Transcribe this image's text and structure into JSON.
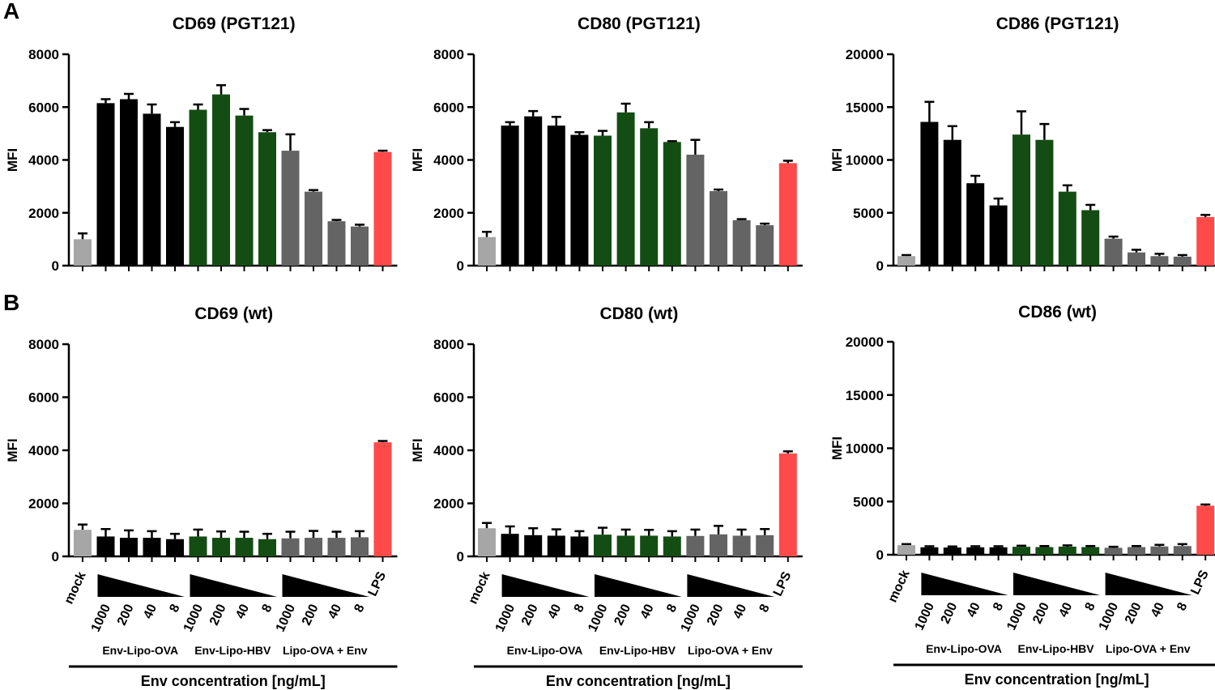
{
  "panel_labels": {
    "a": "A",
    "b": "B"
  },
  "x_axis": {
    "mock_label": "mock",
    "lps_label": "LPS",
    "concentrations": [
      "1000",
      "200",
      "40",
      "8"
    ],
    "groups": [
      "Env-Lipo-OVA",
      "Env-Lipo-HBV",
      "Lipo-OVA + Env"
    ],
    "title": "Env concentration [ng/mL]"
  },
  "colors": {
    "mock": "#a6a6a6",
    "Env-Lipo-OVA": "#000000",
    "Env-Lipo-HBV": "#144d14",
    "Lipo-OVA + Env": "#646464",
    "LPS": "#ff4a4a"
  },
  "chart_data": [
    {
      "type": "bar",
      "id": "cd69-pgt121",
      "row": "A",
      "title": "CD69 (PGT121)",
      "ylabel": "MFI",
      "ylim": [
        0,
        8000
      ],
      "yticks": [
        "0",
        "2000",
        "4000",
        "6000",
        "8000"
      ],
      "categories": [
        "mock",
        "Env-Lipo-OVA 1000",
        "Env-Lipo-OVA 200",
        "Env-Lipo-OVA 40",
        "Env-Lipo-OVA 8",
        "Env-Lipo-HBV 1000",
        "Env-Lipo-HBV 200",
        "Env-Lipo-HBV 40",
        "Env-Lipo-HBV 8",
        "Lipo-OVA + Env 1000",
        "Lipo-OVA + Env 200",
        "Lipo-OVA + Env 40",
        "Lipo-OVA + Env 8",
        "LPS"
      ],
      "values": [
        1000,
        6150,
        6300,
        5750,
        5250,
        5900,
        6480,
        5680,
        5050,
        4350,
        2800,
        1680,
        1480,
        4300
      ],
      "errors": [
        220,
        150,
        200,
        350,
        180,
        200,
        350,
        250,
        80,
        620,
        60,
        50,
        70,
        50
      ]
    },
    {
      "type": "bar",
      "id": "cd80-pgt121",
      "row": "A",
      "title": "CD80 (PGT121)",
      "ylabel": "MFI",
      "ylim": [
        0,
        8000
      ],
      "yticks": [
        "0",
        "2000",
        "4000",
        "6000",
        "8000"
      ],
      "categories": [
        "mock",
        "Env-Lipo-OVA 1000",
        "Env-Lipo-OVA 200",
        "Env-Lipo-OVA 40",
        "Env-Lipo-OVA 8",
        "Env-Lipo-HBV 1000",
        "Env-Lipo-HBV 200",
        "Env-Lipo-HBV 40",
        "Env-Lipo-HBV 8",
        "Lipo-OVA + Env 1000",
        "Lipo-OVA + Env 200",
        "Lipo-OVA + Env 40",
        "Lipo-OVA + Env 8",
        "LPS"
      ],
      "values": [
        1080,
        5300,
        5650,
        5300,
        4950,
        4920,
        5800,
        5200,
        4680,
        4200,
        2820,
        1720,
        1530,
        3880
      ],
      "errors": [
        200,
        130,
        200,
        330,
        100,
        180,
        330,
        230,
        30,
        560,
        60,
        40,
        60,
        90
      ]
    },
    {
      "type": "bar",
      "id": "cd86-pgt121",
      "row": "A",
      "title": "CD86 (PGT121)",
      "ylabel": "MFI",
      "ylim": [
        0,
        20000
      ],
      "yticks": [
        "0",
        "5000",
        "10000",
        "15000",
        "20000"
      ],
      "categories": [
        "mock",
        "Env-Lipo-OVA 1000",
        "Env-Lipo-OVA 200",
        "Env-Lipo-OVA 40",
        "Env-Lipo-OVA 8",
        "Env-Lipo-HBV 1000",
        "Env-Lipo-HBV 200",
        "Env-Lipo-HBV 40",
        "Env-Lipo-HBV 8",
        "Lipo-OVA + Env 1000",
        "Lipo-OVA + Env 200",
        "Lipo-OVA + Env 40",
        "Lipo-OVA + Env 8",
        "LPS"
      ],
      "values": [
        900,
        13600,
        11900,
        7800,
        5700,
        12400,
        11900,
        7000,
        5250,
        2550,
        1250,
        900,
        850,
        4600
      ],
      "errors": [
        100,
        1900,
        1300,
        700,
        650,
        2200,
        1500,
        600,
        500,
        200,
        250,
        220,
        150,
        200
      ]
    },
    {
      "type": "bar",
      "id": "cd69-wt",
      "row": "B",
      "title": "CD69 (wt)",
      "ylabel": "MFI",
      "ylim": [
        0,
        8000
      ],
      "yticks": [
        "0",
        "2000",
        "4000",
        "6000",
        "8000"
      ],
      "categories": [
        "mock",
        "Env-Lipo-OVA 1000",
        "Env-Lipo-OVA 200",
        "Env-Lipo-OVA 40",
        "Env-Lipo-OVA 8",
        "Env-Lipo-HBV 1000",
        "Env-Lipo-HBV 200",
        "Env-Lipo-HBV 40",
        "Env-Lipo-HBV 8",
        "Lipo-OVA + Env 1000",
        "Lipo-OVA + Env 200",
        "Lipo-OVA + Env 40",
        "Lipo-OVA + Env 8",
        "LPS"
      ],
      "values": [
        1000,
        750,
        700,
        700,
        650,
        750,
        700,
        700,
        650,
        680,
        700,
        700,
        720,
        4300
      ],
      "errors": [
        200,
        280,
        280,
        250,
        200,
        260,
        240,
        230,
        200,
        250,
        260,
        230,
        230,
        50
      ]
    },
    {
      "type": "bar",
      "id": "cd80-wt",
      "row": "B",
      "title": "CD80 (wt)",
      "ylabel": "MFI",
      "ylim": [
        0,
        8000
      ],
      "yticks": [
        "0",
        "2000",
        "4000",
        "6000",
        "8000"
      ],
      "categories": [
        "mock",
        "Env-Lipo-OVA 1000",
        "Env-Lipo-OVA 200",
        "Env-Lipo-OVA 40",
        "Env-Lipo-OVA 8",
        "Env-Lipo-HBV 1000",
        "Env-Lipo-HBV 200",
        "Env-Lipo-HBV 40",
        "Env-Lipo-HBV 8",
        "Lipo-OVA + Env 1000",
        "Lipo-OVA + Env 200",
        "Lipo-OVA + Env 40",
        "Lipo-OVA + Env 8",
        "LPS"
      ],
      "values": [
        1060,
        850,
        800,
        780,
        750,
        820,
        780,
        780,
        750,
        770,
        830,
        780,
        800,
        3880
      ],
      "errors": [
        200,
        280,
        260,
        240,
        200,
        260,
        230,
        220,
        200,
        240,
        320,
        230,
        230,
        80
      ]
    },
    {
      "type": "bar",
      "id": "cd86-wt",
      "row": "B",
      "title": "CD86 (wt)",
      "ylabel": "MFI",
      "ylim": [
        0,
        20000
      ],
      "yticks": [
        "0",
        "5000",
        "10000",
        "15000",
        "20000"
      ],
      "categories": [
        "mock",
        "Env-Lipo-OVA 1000",
        "Env-Lipo-OVA 200",
        "Env-Lipo-OVA 40",
        "Env-Lipo-OVA 8",
        "Env-Lipo-HBV 1000",
        "Env-Lipo-HBV 200",
        "Env-Lipo-HBV 40",
        "Env-Lipo-HBV 8",
        "Lipo-OVA + Env 1000",
        "Lipo-OVA + Env 200",
        "Lipo-OVA + Env 40",
        "Lipo-OVA + Env 8",
        "LPS"
      ],
      "values": [
        900,
        700,
        680,
        700,
        700,
        750,
        720,
        760,
        720,
        650,
        720,
        780,
        820,
        4600
      ],
      "errors": [
        100,
        100,
        100,
        100,
        100,
        100,
        100,
        120,
        100,
        100,
        100,
        150,
        180,
        120
      ]
    }
  ]
}
